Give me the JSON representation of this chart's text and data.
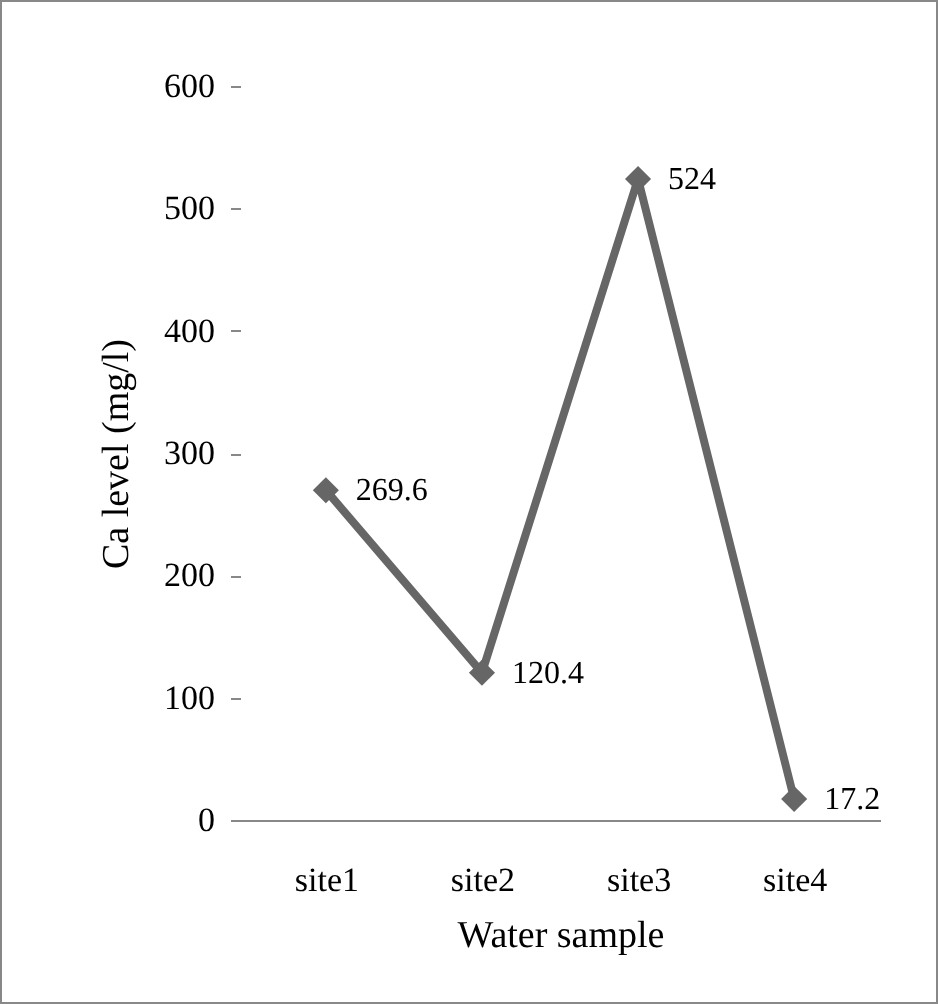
{
  "chart_data": {
    "type": "line",
    "xlabel": "Water sample",
    "ylabel": "Ca level (mg/l)",
    "categories": [
      "site1",
      "site2",
      "site3",
      "site4"
    ],
    "series": [
      {
        "color": "#666666",
        "values": [
          269.6,
          120.4,
          524,
          17.2
        ]
      }
    ],
    "ylim": [
      0,
      600
    ],
    "yticks": [
      0,
      100,
      200,
      300,
      400,
      500,
      600
    ],
    "data_labels": true,
    "marker": "diamond",
    "grid": false
  }
}
